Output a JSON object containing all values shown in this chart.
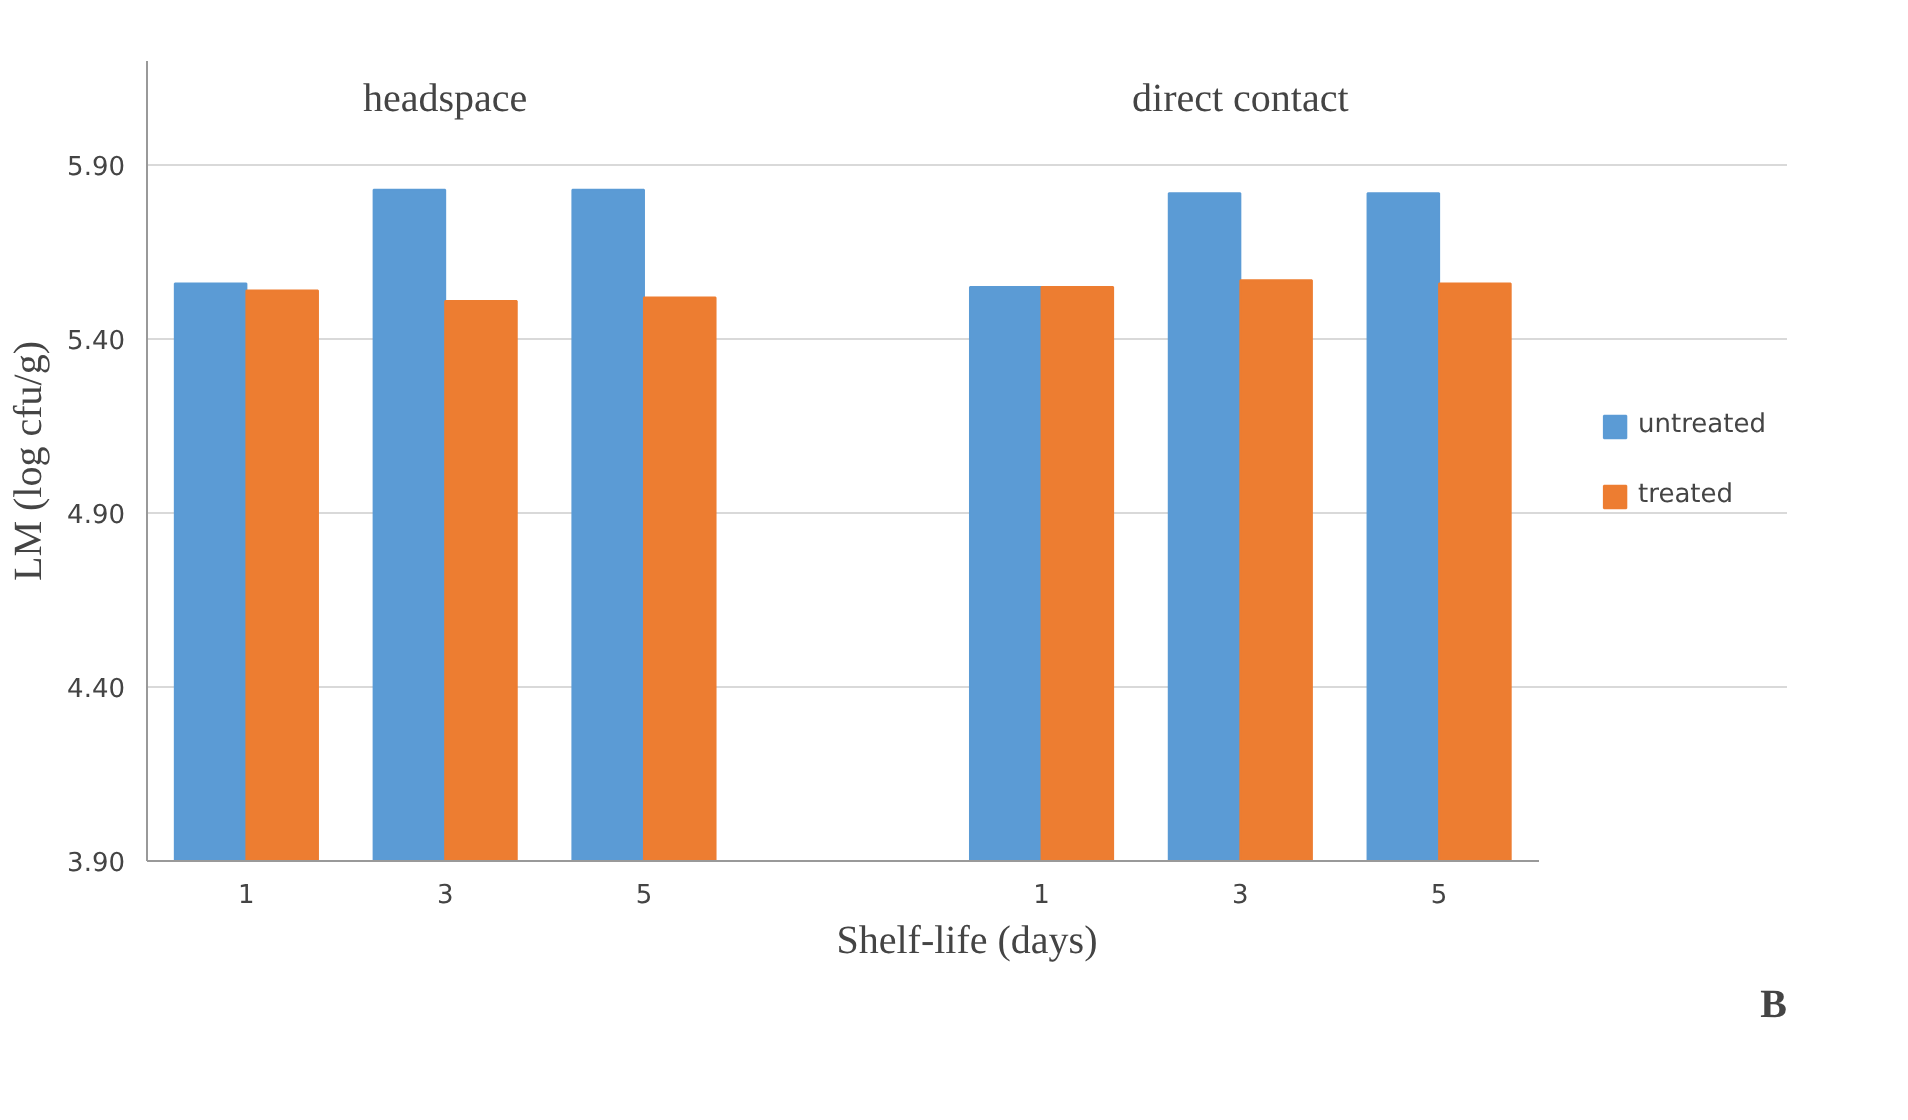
{
  "chart_data": {
    "type": "bar",
    "xlabel": "Shelf-life (days)",
    "ylabel": "LM (log cfu/g)",
    "categories": [
      "1",
      "3",
      "5",
      null,
      "1",
      "3",
      "5"
    ],
    "series": [
      {
        "name": "untreated",
        "color": "#5b9bd5",
        "values": [
          5.56,
          5.83,
          5.83,
          null,
          5.55,
          5.82,
          5.82
        ]
      },
      {
        "name": "treated",
        "color": "#ed7d31",
        "values": [
          5.54,
          5.51,
          5.52,
          null,
          5.55,
          5.57,
          5.56
        ]
      }
    ],
    "ylim": [
      3.9,
      6.2
    ],
    "yticks": [
      {
        "value": 3.9,
        "label": "3.90"
      },
      {
        "value": 4.4,
        "label": "4.40"
      },
      {
        "value": 4.9,
        "label": "4.90"
      },
      {
        "value": 5.4,
        "label": "5.40"
      },
      {
        "value": 5.9,
        "label": "5.90"
      }
    ],
    "grid": "y",
    "legend": "right",
    "annotations": [
      "headspace",
      "direct contact",
      "B"
    ]
  }
}
